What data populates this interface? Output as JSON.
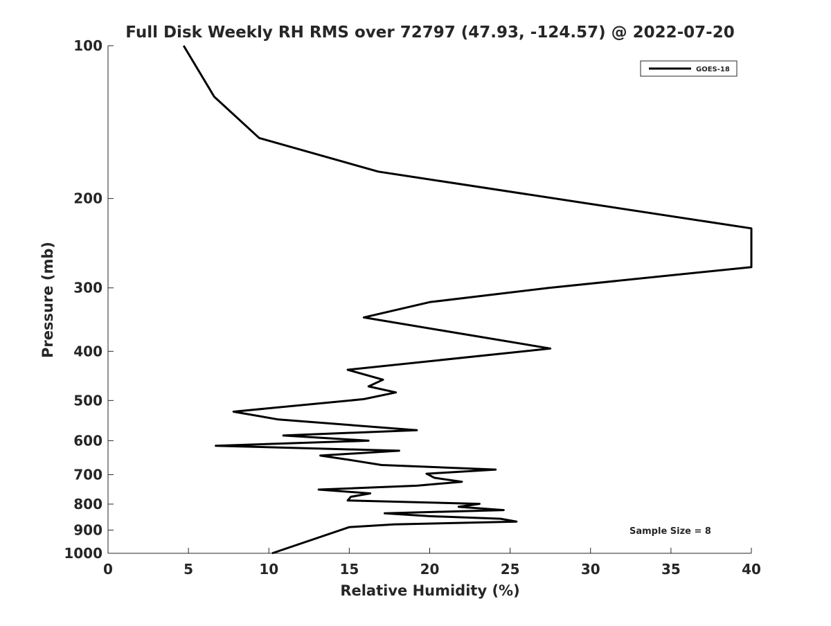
{
  "chart_data": {
    "type": "line",
    "title": "Full Disk Weekly RH RMS over 72797 (47.93, -124.57) @ 2022-07-20",
    "xlabel": "Relative Humidity (%)",
    "ylabel": "Pressure (mb)",
    "xlim": [
      0,
      40
    ],
    "ylim": [
      100,
      1000
    ],
    "y_scale": "log",
    "y_reversed": true,
    "grid": false,
    "legend_position": "top-right",
    "x_ticks": [
      0,
      5,
      10,
      15,
      20,
      25,
      30,
      35,
      40
    ],
    "y_ticks": [
      100,
      200,
      300,
      400,
      500,
      600,
      700,
      800,
      900,
      1000
    ],
    "annotation": "Sample Size = 8",
    "series": [
      {
        "name": "GOES-18",
        "color": "#000000",
        "points": [
          [
            4.7,
            100
          ],
          [
            6.6,
            126
          ],
          [
            9.4,
            152
          ],
          [
            16.8,
            177
          ],
          [
            30.0,
            205
          ],
          [
            40.0,
            229
          ],
          [
            40.0,
            273
          ],
          [
            27.4,
            300
          ],
          [
            20.0,
            320
          ],
          [
            15.9,
            343
          ],
          [
            27.5,
            395
          ],
          [
            14.9,
            435
          ],
          [
            17.1,
            455
          ],
          [
            16.2,
            469
          ],
          [
            17.9,
            482
          ],
          [
            15.9,
            497
          ],
          [
            7.8,
            526
          ],
          [
            10.6,
            545
          ],
          [
            19.2,
            572
          ],
          [
            10.9,
            586
          ],
          [
            16.2,
            600
          ],
          [
            6.7,
            614
          ],
          [
            18.1,
            628
          ],
          [
            13.2,
            642
          ],
          [
            15.2,
            656
          ],
          [
            17.0,
            670
          ],
          [
            24.1,
            684
          ],
          [
            19.8,
            697
          ],
          [
            20.3,
            710
          ],
          [
            22.0,
            723
          ],
          [
            19.2,
            736
          ],
          [
            13.1,
            749
          ],
          [
            16.3,
            762
          ],
          [
            15.1,
            774
          ],
          [
            14.9,
            787
          ],
          [
            23.1,
            799
          ],
          [
            21.8,
            810
          ],
          [
            24.6,
            822
          ],
          [
            17.2,
            834
          ],
          [
            20.0,
            845
          ],
          [
            24.4,
            855
          ],
          [
            25.4,
            866
          ],
          [
            17.8,
            877
          ],
          [
            15.0,
            888
          ],
          [
            10.2,
            1000
          ]
        ]
      }
    ]
  }
}
